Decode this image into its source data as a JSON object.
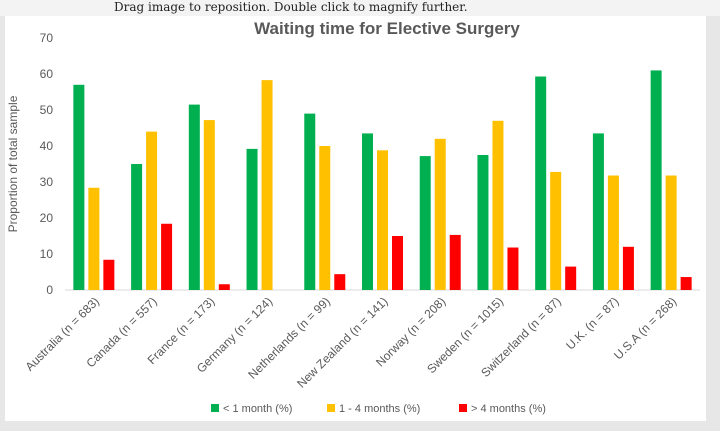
{
  "viewer": {
    "hint": "Drag image to reposition. Double click to magnify further."
  },
  "chart_data": {
    "type": "bar",
    "title": "Waiting time for Elective Surgery",
    "xlabel": "",
    "ylabel": "Proportion of total sample",
    "ylim": [
      0,
      70
    ],
    "yticks": [
      0,
      10,
      20,
      30,
      40,
      50,
      60,
      70
    ],
    "grid": false,
    "legend_position": "bottom",
    "categories": [
      "Australia (n = 683)",
      "Canada (n = 557)",
      "France (n = 173)",
      "Germany (n = 124)",
      "Netherlands (n = 99)",
      "New Zealand (n = 141)",
      "Norway (n = 208)",
      "Sweden (n = 1015)",
      "Switzerland (n = 87)",
      "U.K. (n = 87)",
      "U.S.A (n = 268)"
    ],
    "series": [
      {
        "name": "< 1 month (%)",
        "color": "#00b050",
        "values": [
          57,
          35,
          51.5,
          39.2,
          49,
          43.5,
          37.2,
          37.5,
          59.3,
          43.5,
          61
        ]
      },
      {
        "name": "1 - 4 months (%)",
        "color": "#ffc000",
        "values": [
          28.4,
          44,
          47.2,
          58.3,
          40,
          38.8,
          42,
          47,
          32.8,
          31.8,
          31.8
        ]
      },
      {
        "name": "> 4 months (%)",
        "color": "#ff0000",
        "values": [
          8.4,
          18.4,
          1.6,
          0,
          4.4,
          15,
          15.3,
          11.8,
          6.5,
          12,
          3.6
        ]
      }
    ]
  }
}
